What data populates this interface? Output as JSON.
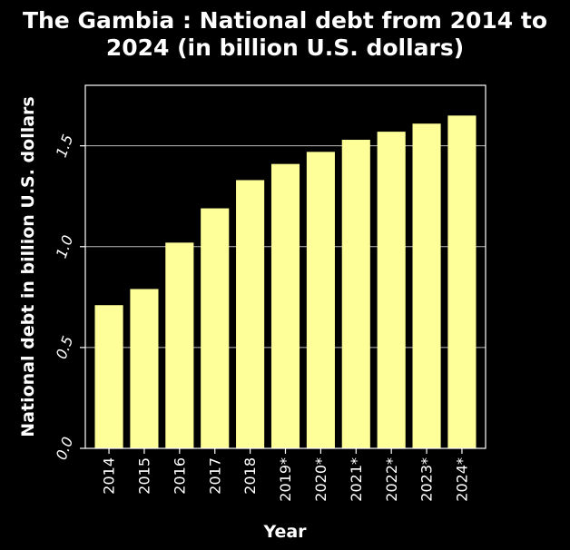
{
  "chart_data": {
    "type": "bar",
    "title": "The Gambia : National debt from 2014 to 2024 (in billion U.S. dollars)",
    "title_lines": [
      "The Gambia : National debt from 2014 to",
      "2024 (in billion U.S. dollars)"
    ],
    "xlabel": "Year",
    "ylabel": "National debt in billion U.S. dollars",
    "categories": [
      "2014",
      "2015",
      "2016",
      "2017",
      "2018",
      "2019*",
      "2020*",
      "2021*",
      "2022*",
      "2023*",
      "2024*"
    ],
    "values": [
      0.71,
      0.79,
      1.02,
      1.19,
      1.33,
      1.41,
      1.47,
      1.53,
      1.57,
      1.61,
      1.65
    ],
    "ylim": [
      0,
      1.8
    ],
    "yticks": [
      "0.0",
      "0.5",
      "1.0",
      "1.5"
    ],
    "grid": "y",
    "bar_color": "#ffff99",
    "background_color": "#000000",
    "text_color": "#ffffff",
    "gridline_color": "#bbbbbb"
  }
}
